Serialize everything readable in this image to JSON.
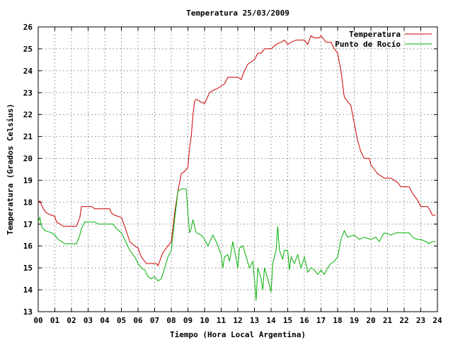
{
  "chart_data": {
    "type": "line",
    "title": "Temperatura 25/03/2009",
    "xlabel": "Tiempo (Hora Local Argentina)",
    "ylabel": "Temperatura (Grados Celsius)",
    "xlim": [
      0,
      24
    ],
    "ylim": [
      13,
      26
    ],
    "x_ticks": [
      "00",
      "01",
      "02",
      "03",
      "04",
      "05",
      "06",
      "07",
      "08",
      "09",
      "10",
      "11",
      "12",
      "13",
      "14",
      "15",
      "16",
      "17",
      "18",
      "19",
      "20",
      "21",
      "22",
      "23",
      "24"
    ],
    "y_ticks": [
      13,
      14,
      15,
      16,
      17,
      18,
      19,
      20,
      21,
      22,
      23,
      24,
      25,
      26
    ],
    "grid": true,
    "legend_position": "top-right",
    "series": [
      {
        "name": "Temperatura",
        "color": "#cc0000",
        "points": [
          [
            0,
            18.0
          ],
          [
            0.1,
            18.05
          ],
          [
            0.3,
            17.7
          ],
          [
            0.5,
            17.5
          ],
          [
            0.8,
            17.4
          ],
          [
            1.0,
            17.35
          ],
          [
            1.1,
            17.1
          ],
          [
            1.3,
            17.0
          ],
          [
            1.5,
            16.9
          ],
          [
            2.3,
            16.9
          ],
          [
            2.5,
            17.3
          ],
          [
            2.6,
            17.8
          ],
          [
            3.2,
            17.8
          ],
          [
            3.4,
            17.7
          ],
          [
            4.3,
            17.7
          ],
          [
            4.4,
            17.5
          ],
          [
            4.6,
            17.4
          ],
          [
            5.0,
            17.3
          ],
          [
            5.2,
            16.9
          ],
          [
            5.5,
            16.2
          ],
          [
            5.8,
            16.0
          ],
          [
            6.0,
            15.9
          ],
          [
            6.2,
            15.5
          ],
          [
            6.5,
            15.2
          ],
          [
            7.1,
            15.2
          ],
          [
            7.2,
            15.1
          ],
          [
            7.3,
            15.3
          ],
          [
            7.5,
            15.7
          ],
          [
            7.8,
            16.0
          ],
          [
            8.0,
            16.2
          ],
          [
            8.2,
            17.5
          ],
          [
            8.4,
            18.5
          ],
          [
            8.6,
            19.3
          ],
          [
            8.8,
            19.4
          ],
          [
            9.0,
            19.6
          ],
          [
            9.1,
            20.5
          ],
          [
            9.2,
            21.0
          ],
          [
            9.3,
            22.0
          ],
          [
            9.4,
            22.6
          ],
          [
            9.5,
            22.7
          ],
          [
            9.7,
            22.6
          ],
          [
            10.0,
            22.5
          ],
          [
            10.3,
            23.0
          ],
          [
            10.5,
            23.1
          ],
          [
            10.8,
            23.2
          ],
          [
            11.0,
            23.3
          ],
          [
            11.2,
            23.4
          ],
          [
            11.4,
            23.7
          ],
          [
            12.0,
            23.7
          ],
          [
            12.2,
            23.6
          ],
          [
            12.4,
            24.0
          ],
          [
            12.6,
            24.3
          ],
          [
            12.8,
            24.4
          ],
          [
            13.0,
            24.5
          ],
          [
            13.2,
            24.8
          ],
          [
            13.4,
            24.8
          ],
          [
            13.6,
            25.0
          ],
          [
            14.0,
            25.0
          ],
          [
            14.3,
            25.2
          ],
          [
            14.6,
            25.3
          ],
          [
            14.8,
            25.4
          ],
          [
            15.0,
            25.2
          ],
          [
            15.2,
            25.3
          ],
          [
            15.5,
            25.4
          ],
          [
            16.0,
            25.4
          ],
          [
            16.2,
            25.2
          ],
          [
            16.4,
            25.6
          ],
          [
            16.6,
            25.5
          ],
          [
            16.9,
            25.5
          ],
          [
            17.0,
            25.6
          ],
          [
            17.3,
            25.3
          ],
          [
            17.6,
            25.3
          ],
          [
            17.8,
            25.0
          ],
          [
            18.0,
            24.8
          ],
          [
            18.2,
            24.0
          ],
          [
            18.4,
            22.8
          ],
          [
            18.6,
            22.6
          ],
          [
            18.8,
            22.4
          ],
          [
            19.0,
            21.6
          ],
          [
            19.2,
            20.8
          ],
          [
            19.4,
            20.3
          ],
          [
            19.6,
            20.0
          ],
          [
            19.9,
            20.0
          ],
          [
            20.0,
            19.7
          ],
          [
            20.2,
            19.5
          ],
          [
            20.4,
            19.3
          ],
          [
            20.6,
            19.2
          ],
          [
            20.8,
            19.1
          ],
          [
            21.2,
            19.1
          ],
          [
            21.6,
            18.9
          ],
          [
            21.8,
            18.7
          ],
          [
            22.3,
            18.7
          ],
          [
            22.5,
            18.4
          ],
          [
            22.8,
            18.1
          ],
          [
            23.0,
            17.8
          ],
          [
            23.4,
            17.8
          ],
          [
            23.5,
            17.7
          ],
          [
            23.7,
            17.4
          ],
          [
            23.9,
            17.4
          ]
        ]
      },
      {
        "name": "Punto de Rocío",
        "color": "#00b000",
        "points": [
          [
            0,
            17.1
          ],
          [
            0.1,
            17.3
          ],
          [
            0.2,
            16.9
          ],
          [
            0.4,
            16.7
          ],
          [
            0.8,
            16.6
          ],
          [
            1.0,
            16.5
          ],
          [
            1.2,
            16.3
          ],
          [
            1.4,
            16.2
          ],
          [
            1.6,
            16.1
          ],
          [
            2.3,
            16.1
          ],
          [
            2.5,
            16.5
          ],
          [
            2.6,
            16.8
          ],
          [
            2.8,
            17.1
          ],
          [
            3.4,
            17.1
          ],
          [
            3.6,
            17.0
          ],
          [
            4.5,
            17.0
          ],
          [
            4.7,
            16.8
          ],
          [
            5.0,
            16.6
          ],
          [
            5.2,
            16.3
          ],
          [
            5.5,
            15.8
          ],
          [
            5.8,
            15.5
          ],
          [
            6.0,
            15.2
          ],
          [
            6.2,
            15.0
          ],
          [
            6.4,
            14.9
          ],
          [
            6.6,
            14.6
          ],
          [
            6.8,
            14.5
          ],
          [
            7.0,
            14.6
          ],
          [
            7.2,
            14.4
          ],
          [
            7.4,
            14.5
          ],
          [
            7.6,
            15.0
          ],
          [
            7.8,
            15.5
          ],
          [
            8.0,
            15.8
          ],
          [
            8.2,
            17.2
          ],
          [
            8.4,
            18.5
          ],
          [
            8.6,
            18.6
          ],
          [
            8.9,
            18.6
          ],
          [
            9.0,
            17.5
          ],
          [
            9.1,
            16.6
          ],
          [
            9.2,
            16.8
          ],
          [
            9.3,
            17.2
          ],
          [
            9.5,
            16.6
          ],
          [
            9.8,
            16.5
          ],
          [
            10.0,
            16.3
          ],
          [
            10.2,
            16.0
          ],
          [
            10.5,
            16.5
          ],
          [
            10.7,
            16.2
          ],
          [
            11.0,
            15.6
          ],
          [
            11.1,
            15.0
          ],
          [
            11.2,
            15.5
          ],
          [
            11.4,
            15.6
          ],
          [
            11.5,
            15.3
          ],
          [
            11.7,
            16.2
          ],
          [
            11.9,
            15.4
          ],
          [
            12.0,
            15.0
          ],
          [
            12.1,
            15.9
          ],
          [
            12.3,
            16.0
          ],
          [
            12.5,
            15.5
          ],
          [
            12.7,
            15.0
          ],
          [
            12.9,
            15.3
          ],
          [
            13.0,
            14.5
          ],
          [
            13.1,
            13.5
          ],
          [
            13.2,
            15.0
          ],
          [
            13.4,
            14.5
          ],
          [
            13.5,
            14.0
          ],
          [
            13.6,
            15.0
          ],
          [
            13.8,
            14.5
          ],
          [
            14.0,
            13.9
          ],
          [
            14.1,
            15.2
          ],
          [
            14.3,
            15.8
          ],
          [
            14.4,
            16.9
          ],
          [
            14.5,
            15.8
          ],
          [
            14.7,
            15.4
          ],
          [
            14.8,
            15.8
          ],
          [
            15.0,
            15.8
          ],
          [
            15.1,
            14.9
          ],
          [
            15.2,
            15.5
          ],
          [
            15.4,
            15.2
          ],
          [
            15.6,
            15.6
          ],
          [
            15.8,
            15.0
          ],
          [
            16.0,
            15.5
          ],
          [
            16.2,
            14.8
          ],
          [
            16.4,
            15.0
          ],
          [
            16.6,
            14.9
          ],
          [
            16.8,
            14.7
          ],
          [
            17.0,
            14.9
          ],
          [
            17.2,
            14.7
          ],
          [
            17.4,
            15.0
          ],
          [
            17.6,
            15.2
          ],
          [
            17.8,
            15.3
          ],
          [
            18.0,
            15.5
          ],
          [
            18.2,
            16.3
          ],
          [
            18.4,
            16.7
          ],
          [
            18.6,
            16.4
          ],
          [
            19.0,
            16.5
          ],
          [
            19.3,
            16.3
          ],
          [
            19.6,
            16.4
          ],
          [
            20.0,
            16.3
          ],
          [
            20.3,
            16.4
          ],
          [
            20.5,
            16.2
          ],
          [
            20.8,
            16.6
          ],
          [
            21.2,
            16.5
          ],
          [
            21.5,
            16.6
          ],
          [
            22.0,
            16.6
          ],
          [
            22.3,
            16.6
          ],
          [
            22.5,
            16.4
          ],
          [
            22.8,
            16.3
          ],
          [
            23.0,
            16.3
          ],
          [
            23.3,
            16.2
          ],
          [
            23.5,
            16.1
          ],
          [
            23.7,
            16.2
          ],
          [
            23.9,
            16.2
          ]
        ]
      }
    ]
  }
}
